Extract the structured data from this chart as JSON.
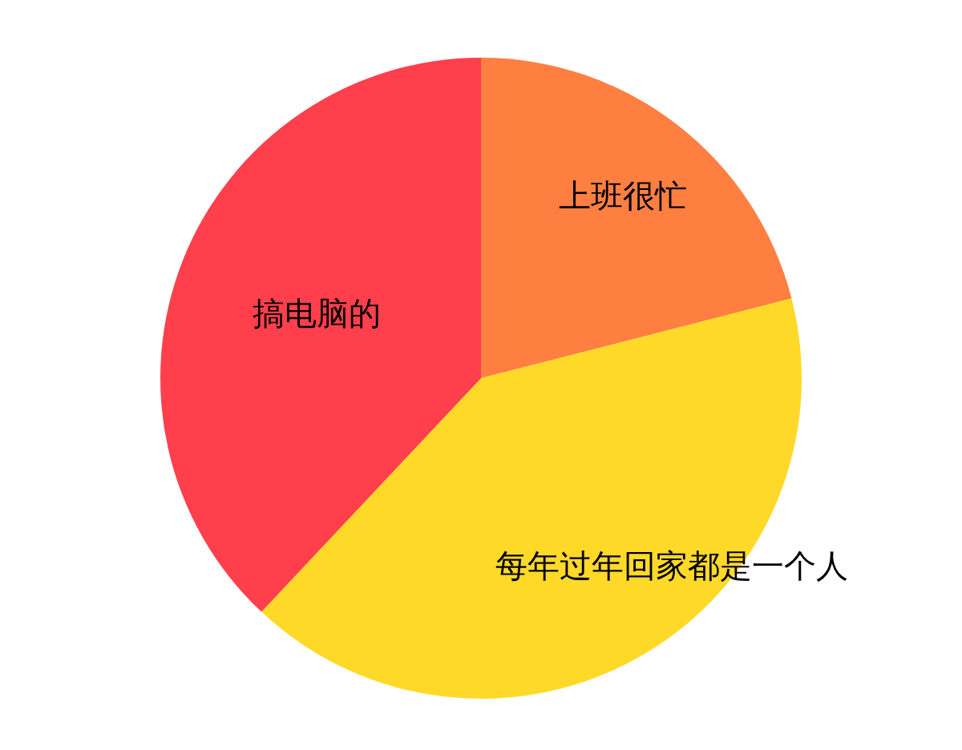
{
  "chart_data": {
    "type": "pie",
    "categories": [
      "上班很忙",
      "每年过年回家都是一个人",
      "搞电脑的"
    ],
    "values": [
      21,
      41,
      38
    ],
    "colors": [
      "#ff7f41",
      "#ffd928",
      "#ff3f4b"
    ]
  }
}
